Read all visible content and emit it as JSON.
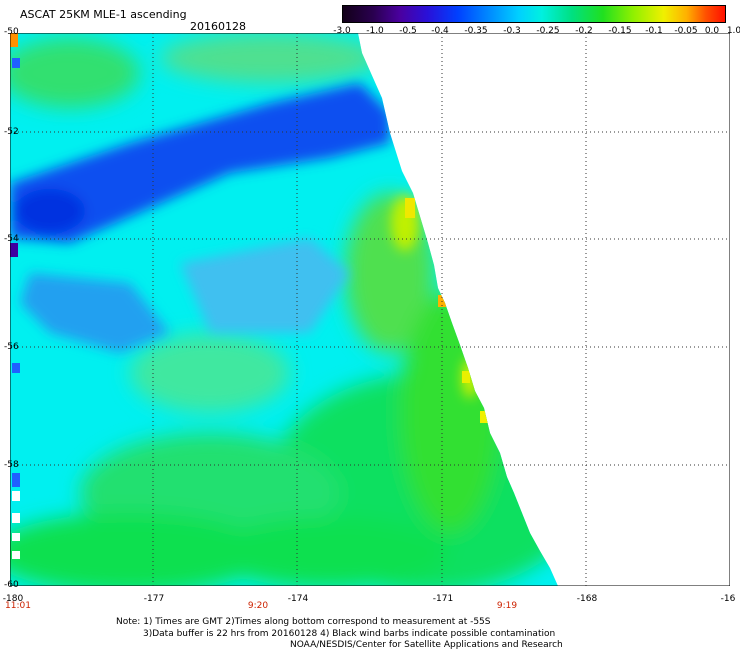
{
  "header": {
    "title_line1": "ASCAT 25KM MLE-1 ascending",
    "title_line2": "20160128"
  },
  "colorbar": {
    "labels": [
      "-3.0",
      "-1.0",
      "-0.5",
      "-0.4",
      "-0.35",
      "-0.3",
      "-0.25",
      "-0.2",
      "-0.15",
      "-0.1",
      "-0.05",
      "0.0",
      "1.0"
    ]
  },
  "map": {
    "lat_labels": [
      "-50",
      "-52",
      "-54",
      "-56",
      "-58",
      "-60"
    ],
    "lon_labels": [
      "-180",
      "-177",
      "-174",
      "-171",
      "-168",
      "-16"
    ],
    "time_labels": [
      "11:01",
      "9:20",
      "9:19"
    ],
    "colors": {
      "grid": "#333333",
      "time_text": "#cc2200"
    }
  },
  "notes": {
    "line1": "Note: 1) Times are GMT 2)Times along bottom correspond to measurement at -55S",
    "line2": "3)Data buffer is 22 hrs from 20160128 4) Black wind barbs indicate possible contamination",
    "line3": "NOAA/NESDIS/Center for Satellite Applications and Research"
  }
}
